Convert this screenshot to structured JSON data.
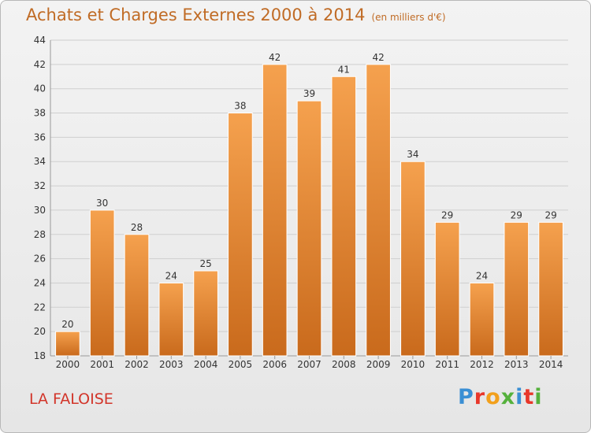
{
  "chart_data": {
    "type": "bar",
    "title": "Achats et Charges Externes 2000 à 2014",
    "subtitle": "(en milliers d'€)",
    "categories": [
      "2000",
      "2001",
      "2002",
      "2003",
      "2004",
      "2005",
      "2006",
      "2007",
      "2008",
      "2009",
      "2010",
      "2011",
      "2012",
      "2013",
      "2014"
    ],
    "values": [
      20,
      30,
      28,
      24,
      25,
      38,
      42,
      39,
      41,
      42,
      34,
      29,
      24,
      29,
      29
    ],
    "ylim": [
      18,
      44
    ],
    "yticks": [
      18,
      20,
      22,
      24,
      26,
      28,
      30,
      32,
      34,
      36,
      38,
      40,
      42,
      44
    ],
    "grid": true,
    "bar_color_light": "#f5a14e",
    "bar_color_dark": "#c96a1c"
  },
  "footer": {
    "place_name": "LA FALOISE",
    "brand": "Proxiti"
  },
  "brand_colors": [
    "#3a8fd4",
    "#e8372a",
    "#f2a01c",
    "#55b13c",
    "#3a8fd4",
    "#e8372a",
    "#55b13c"
  ]
}
